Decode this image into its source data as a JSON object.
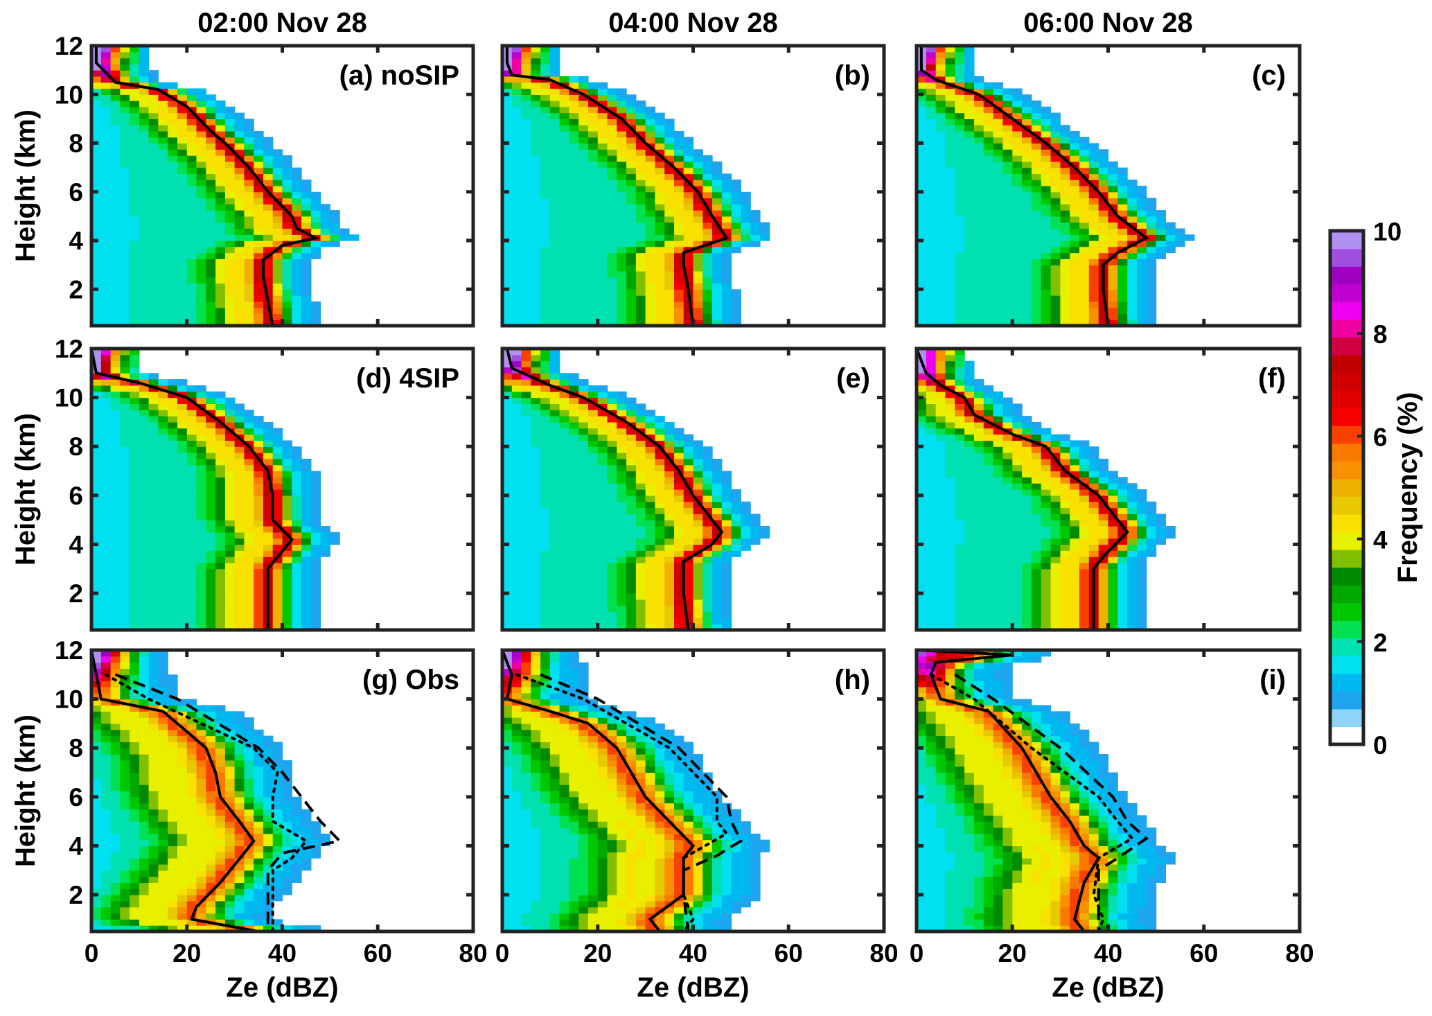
{
  "chart_data": {
    "type": "heatmap",
    "description_title": "CFAD of radar reflectivity",
    "column_titles": [
      "02:00 Nov 28",
      "04:00 Nov 28",
      "06:00 Nov 28"
    ],
    "xlabel": "Ze (dBZ)",
    "ylabel": "Height (km)",
    "xlim": [
      0,
      80
    ],
    "ylim": [
      0.5,
      12
    ],
    "xticks": [
      "0",
      "20",
      "40",
      "60",
      "80"
    ],
    "yticks": [
      "2",
      "4",
      "6",
      "8",
      "10",
      "12"
    ],
    "colorbar": {
      "label": "Frequency (%)",
      "range": [
        0,
        10
      ],
      "ticks": [
        "0",
        "2",
        "4",
        "6",
        "8",
        "10"
      ],
      "colors": [
        "#ffffff",
        "#8fd3f8",
        "#1fa5f0",
        "#00b8f0",
        "#00e0f0",
        "#00e0b0",
        "#00e050",
        "#00c800",
        "#00a800",
        "#008a00",
        "#80c000",
        "#e8f000",
        "#f8e000",
        "#e8c800",
        "#f0b000",
        "#f89000",
        "#f87800",
        "#f84000",
        "#f80000",
        "#e00000",
        "#d00000",
        "#c00000",
        "#d00040",
        "#f000a0",
        "#f000f0",
        "#c000d0",
        "#a000c0",
        "#a050e0",
        "#b090f0"
      ]
    },
    "panels": [
      {
        "label": "(a) noSIP",
        "row": 0,
        "col": 0,
        "lines": [
          {
            "style": "solid",
            "height": [
              12,
              11.3,
              10.5,
              10.2,
              9.5,
              8.5,
              8,
              7,
              6,
              5,
              4.5,
              4.1,
              3.8,
              3.2,
              2.5,
              1.5,
              0.5
            ],
            "ze": [
              1,
              1,
              5,
              14,
              20,
              25,
              28,
              33,
              37,
              42,
              43,
              47,
              40,
              36,
              36,
              37,
              38
            ]
          }
        ]
      },
      {
        "label": "(b)",
        "row": 0,
        "col": 1,
        "lines": [
          {
            "style": "solid",
            "height": [
              12,
              11.3,
              10.8,
              10.6,
              10,
              9,
              8,
              7,
              6,
              5,
              4.1,
              3.5,
              3,
              2,
              0.5
            ],
            "ze": [
              1,
              1,
              2,
              10,
              17,
              25,
              30,
              36,
              41,
              44,
              47,
              38,
              38,
              39,
              40
            ]
          }
        ]
      },
      {
        "label": "(c)",
        "row": 0,
        "col": 2,
        "lines": [
          {
            "style": "solid",
            "height": [
              12,
              11,
              10.6,
              10,
              9,
              8,
              7,
              6,
              5,
              4.1,
              3.5,
              3,
              2,
              0.5
            ],
            "ze": [
              1,
              1,
              4,
              13,
              20,
              27,
              33,
              38,
              42,
              48,
              42,
              39,
              39,
              40
            ]
          }
        ]
      },
      {
        "label": "(d) 4SIP",
        "row": 1,
        "col": 0,
        "lines": [
          {
            "style": "solid",
            "height": [
              12,
              11,
              10.6,
              10,
              9,
              8,
              7,
              6,
              5,
              4.2,
              3,
              2,
              0.5
            ],
            "ze": [
              0,
              1,
              10,
              20,
              27,
              33,
              37,
              38,
              38,
              42,
              37,
              37,
              37
            ]
          }
        ]
      },
      {
        "label": "(e)",
        "row": 1,
        "col": 1,
        "lines": [
          {
            "style": "solid",
            "height": [
              12,
              11.2,
              10.5,
              10,
              9,
              8,
              7,
              6,
              5,
              4.5,
              4,
              3.3,
              2,
              0.5
            ],
            "ze": [
              1,
              2,
              10,
              17,
              26,
              33,
              37,
              40,
              44,
              46,
              44,
              38,
              38,
              39
            ]
          }
        ]
      },
      {
        "label": "(f)",
        "row": 1,
        "col": 2,
        "lines": [
          {
            "style": "solid",
            "height": [
              12,
              11,
              10.5,
              10,
              9.3,
              8.5,
              8,
              7,
              6,
              5,
              4.5,
              3.5,
              3,
              2,
              0.5
            ],
            "ze": [
              0,
              2,
              5,
              10,
              12,
              20,
              27,
              31,
              38,
              42,
              44,
              39,
              37,
              37,
              37
            ]
          }
        ]
      },
      {
        "label": "(g) Obs",
        "row": 2,
        "col": 0,
        "lines": [
          {
            "style": "solid",
            "height": [
              12,
              11,
              10,
              9.5,
              8,
              7,
              6,
              5,
              4.2,
              3.7,
              2.5,
              1.5,
              1,
              0.5
            ],
            "ze": [
              0,
              1,
              2,
              15,
              24,
              26,
              27,
              31,
              34,
              32,
              27,
              22,
              21,
              35
            ]
          },
          {
            "style": "dashed",
            "height": [
              11,
              10,
              8,
              7,
              6,
              5,
              4.2,
              3.7,
              3,
              2,
              0.5
            ],
            "ze": [
              5,
              18,
              35,
              40,
              44,
              48,
              52,
              40,
              37,
              37,
              37
            ]
          },
          {
            "style": "dotted",
            "height": [
              11,
              10,
              8,
              7,
              6,
              5,
              4.2,
              3.5,
              3,
              2,
              0.5
            ],
            "ze": [
              3,
              12,
              34,
              39,
              38,
              38,
              45,
              42,
              38,
              38,
              38
            ]
          }
        ]
      },
      {
        "label": "(h)",
        "row": 2,
        "col": 1,
        "lines": [
          {
            "style": "solid",
            "height": [
              12,
              11,
              10,
              9.5,
              9,
              8,
              7,
              6,
              5,
              4,
              3.5,
              2,
              1,
              0.5
            ],
            "ze": [
              0,
              2,
              1,
              10,
              18,
              24,
              27,
              30,
              35,
              40,
              38,
              38,
              31,
              33
            ]
          },
          {
            "style": "dashed",
            "height": [
              11,
              10,
              8,
              6,
              5,
              4.2,
              3.6,
              3,
              2,
              0.5
            ],
            "ze": [
              8,
              20,
              37,
              47,
              48,
              50,
              45,
              38,
              38,
              39
            ]
          },
          {
            "style": "dotted",
            "height": [
              11,
              10,
              8,
              6,
              5,
              4.5,
              3.5,
              2,
              1,
              0.5
            ],
            "ze": [
              3,
              17,
              35,
              45,
              45,
              47,
              38,
              38,
              40,
              38
            ]
          }
        ]
      },
      {
        "label": "(i)",
        "row": 2,
        "col": 2,
        "lines": [
          {
            "style": "solid",
            "height": [
              12,
              11.8,
              11.5,
              11,
              10,
              9.5,
              8,
              6,
              5,
              4,
              3.5,
              2.5,
              1,
              0.5
            ],
            "ze": [
              0,
              20,
              4,
              3,
              5,
              15,
              22,
              28,
              32,
              35,
              38,
              35,
              33,
              35
            ]
          },
          {
            "style": "dashed",
            "height": [
              11,
              10,
              8,
              6,
              5,
              4.3,
              3.5,
              3,
              2,
              0.5
            ],
            "ze": [
              8,
              16,
              30,
              41,
              44,
              48,
              42,
              38,
              38,
              38
            ]
          },
          {
            "style": "dotted",
            "height": [
              11,
              10,
              8,
              6,
              5,
              4.3,
              3.5,
              2,
              1,
              0.5
            ],
            "ze": [
              3,
              12,
              24,
              38,
              42,
              45,
              38,
              37,
              39,
              38
            ]
          }
        ]
      }
    ]
  }
}
